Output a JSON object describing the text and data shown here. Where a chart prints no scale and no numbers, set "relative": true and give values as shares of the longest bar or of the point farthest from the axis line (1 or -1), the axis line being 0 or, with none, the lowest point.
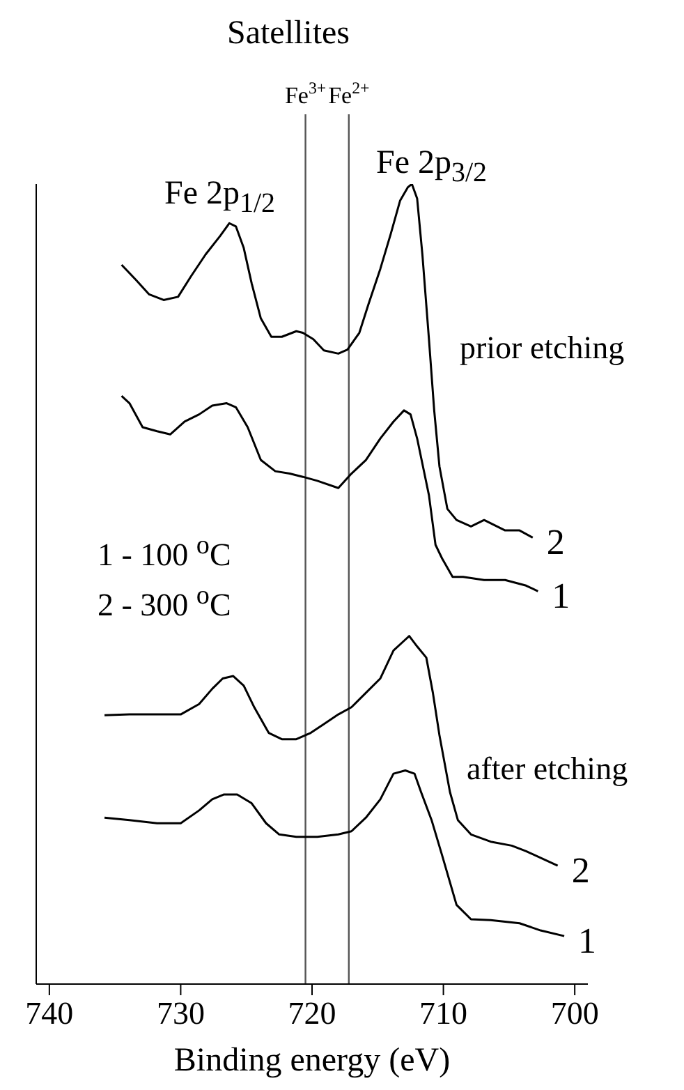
{
  "chart_data": {
    "type": "line",
    "relative": true,
    "xlabel": "Binding energy (eV)",
    "xlim": [
      741,
      699
    ],
    "xticks": [
      740,
      730,
      720,
      710,
      700
    ],
    "legend": false,
    "annotations": [
      "Satellites",
      "Fe 2p$_{1/2}$",
      "Fe 2p$_{3/2}$",
      "prior etching",
      "1 - 100 $^{o}$C",
      "2 - 300 $^{o}$C",
      "after etching"
    ],
    "ref_lines": [
      {
        "axis": "x",
        "value": 720.5,
        "label": "Fe$^{3+}$",
        "color": "#555555"
      },
      {
        "axis": "x",
        "value": 717.2,
        "label": "Fe$^{2+}$",
        "color": "#555555"
      }
    ],
    "series": [
      {
        "name": "2",
        "color": "#000000",
        "x": [
          734.5,
          733.4,
          732.4,
          731.3,
          730.2,
          729.2,
          728.1,
          727.0,
          726.3,
          725.8,
          725.2,
          724.6,
          723.9,
          723.1,
          722.3,
          721.2,
          720.7,
          719.9,
          719.1,
          718.0,
          717.3,
          716.4,
          715.7,
          714.8,
          714.0,
          713.3,
          712.7,
          712.4,
          712.0,
          711.6,
          711.1,
          710.7,
          710.3,
          709.7,
          709.0,
          707.9,
          706.9,
          705.3,
          704.2,
          703.2
        ],
        "values": [
          0.899,
          0.88,
          0.862,
          0.855,
          0.859,
          0.885,
          0.912,
          0.935,
          0.951,
          0.947,
          0.92,
          0.876,
          0.832,
          0.809,
          0.809,
          0.816,
          0.814,
          0.806,
          0.792,
          0.788,
          0.793,
          0.814,
          0.85,
          0.894,
          0.938,
          0.979,
          0.996,
          1,
          0.982,
          0.912,
          0.806,
          0.717,
          0.647,
          0.594,
          0.58,
          0.572,
          0.58,
          0.567,
          0.567,
          0.558
        ]
      },
      {
        "name": "1",
        "color": "#000000",
        "x": [
          734.5,
          733.9,
          732.9,
          731.8,
          730.8,
          729.7,
          728.6,
          727.6,
          726.5,
          725.8,
          724.9,
          723.9,
          722.8,
          721.7,
          720.7,
          719.6,
          718.0,
          717.0,
          715.9,
          714.8,
          713.8,
          713.0,
          712.5,
          712.0,
          711.1,
          710.6,
          710.1,
          709.3,
          708.5,
          706.9,
          705.3,
          703.7,
          702.8
        ],
        "values": [
          0.735,
          0.726,
          0.696,
          0.691,
          0.687,
          0.703,
          0.712,
          0.723,
          0.726,
          0.721,
          0.696,
          0.655,
          0.641,
          0.638,
          0.634,
          0.629,
          0.62,
          0.638,
          0.655,
          0.682,
          0.703,
          0.717,
          0.712,
          0.682,
          0.611,
          0.549,
          0.532,
          0.509,
          0.509,
          0.505,
          0.505,
          0.498,
          0.491
        ]
      },
      {
        "name": "2",
        "color": "#000000",
        "x": [
          735.8,
          733.9,
          731.8,
          730.0,
          728.6,
          727.6,
          726.8,
          726.0,
          725.2,
          724.4,
          723.3,
          722.3,
          721.2,
          720.1,
          719.1,
          718.0,
          717.0,
          715.9,
          714.8,
          713.8,
          713.0,
          712.6,
          712.0,
          711.3,
          710.8,
          710.3,
          709.5,
          708.9,
          707.9,
          706.4,
          704.8,
          703.7,
          701.3
        ],
        "values": [
          0.336,
          0.337,
          0.337,
          0.337,
          0.35,
          0.369,
          0.382,
          0.385,
          0.373,
          0.346,
          0.314,
          0.306,
          0.306,
          0.314,
          0.325,
          0.337,
          0.346,
          0.364,
          0.382,
          0.417,
          0.429,
          0.435,
          0.422,
          0.408,
          0.364,
          0.311,
          0.24,
          0.205,
          0.187,
          0.178,
          0.173,
          0.166,
          0.148
        ]
      },
      {
        "name": "1",
        "color": "#000000",
        "x": [
          735.8,
          733.9,
          731.8,
          730.0,
          728.6,
          727.6,
          726.7,
          725.7,
          724.6,
          723.5,
          722.5,
          721.2,
          719.6,
          718.0,
          717.0,
          715.9,
          714.8,
          713.8,
          712.9,
          712.2,
          711.7,
          710.9,
          710.1,
          709.0,
          707.9,
          706.4,
          704.2,
          702.6,
          700.8
        ],
        "values": [
          0.208,
          0.205,
          0.201,
          0.201,
          0.217,
          0.231,
          0.237,
          0.237,
          0.226,
          0.201,
          0.187,
          0.184,
          0.184,
          0.187,
          0.191,
          0.208,
          0.231,
          0.263,
          0.267,
          0.263,
          0.24,
          0.205,
          0.161,
          0.099,
          0.081,
          0.08,
          0.076,
          0.067,
          0.06
        ]
      }
    ]
  }
}
